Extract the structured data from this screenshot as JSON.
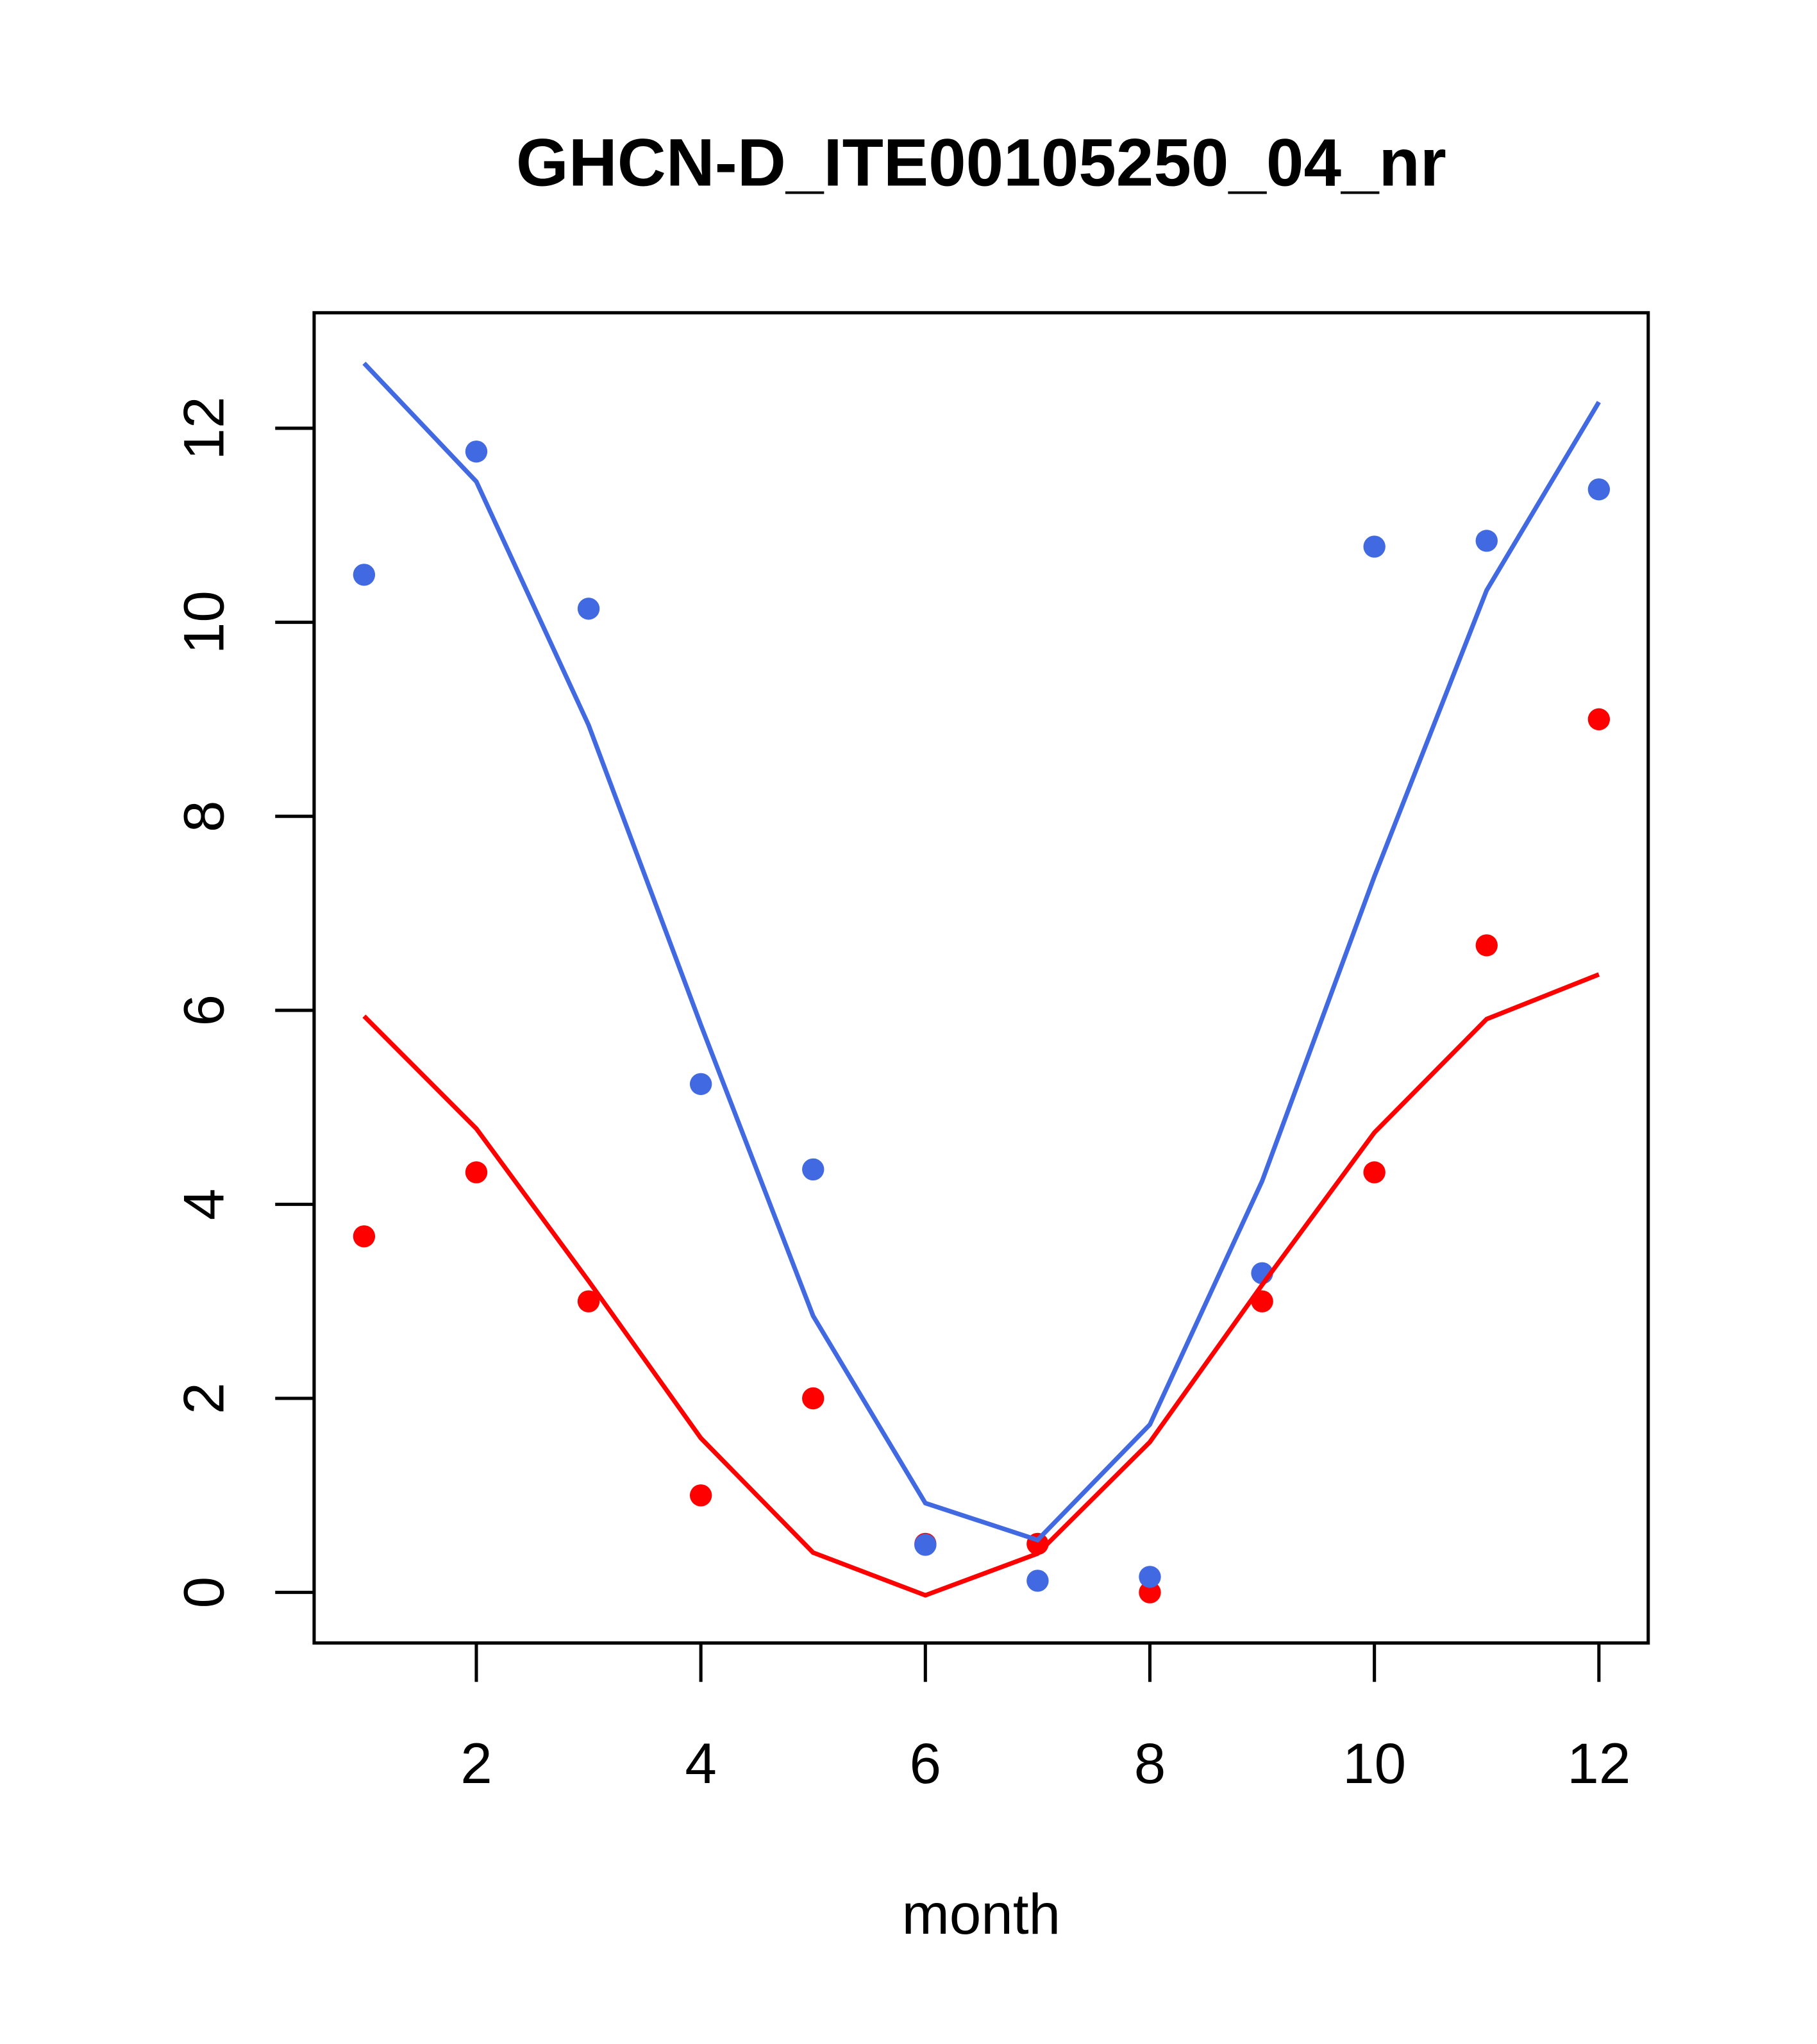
{
  "chart_data": {
    "type": "line",
    "title": "GHCN-D_ITE00105250_04_nr",
    "xlabel": "month",
    "ylabel": "",
    "xlim": [
      0.78,
      12.44
    ],
    "ylim": [
      -0.5,
      13.2
    ],
    "x_ticks": [
      2,
      4,
      6,
      8,
      10,
      12
    ],
    "y_ticks": [
      0,
      2,
      4,
      6,
      8,
      10,
      12
    ],
    "x_tick_labels": [
      "2",
      "4",
      "6",
      "8",
      "10",
      "12"
    ],
    "y_tick_labels": [
      "0",
      "2",
      "4",
      "6",
      "8",
      "10",
      "12"
    ],
    "grid": false,
    "x": [
      1,
      2,
      3,
      4,
      5,
      6,
      7,
      8,
      9,
      10,
      11,
      12
    ],
    "series": [
      {
        "name": "red points",
        "kind": "points",
        "color": "#ff0000",
        "values": [
          3.67,
          4.33,
          3.0,
          1.0,
          2.0,
          0.5,
          0.5,
          0.0,
          3.0,
          4.33,
          6.67,
          9.0
        ]
      },
      {
        "name": "blue points",
        "kind": "points",
        "color": "#4169e1",
        "values": [
          10.49,
          11.76,
          10.14,
          5.24,
          4.36,
          0.49,
          0.12,
          0.16,
          3.29,
          10.78,
          10.84,
          11.37
        ]
      },
      {
        "name": "red line",
        "kind": "line",
        "color": "#ff0000",
        "values": [
          5.94,
          4.78,
          3.21,
          1.59,
          0.41,
          -0.03,
          0.4,
          1.55,
          3.17,
          4.74,
          5.91,
          6.37
        ]
      },
      {
        "name": "blue line",
        "kind": "line",
        "color": "#4169e1",
        "values": [
          12.67,
          11.45,
          8.94,
          5.85,
          2.85,
          0.92,
          0.54,
          1.73,
          4.24,
          7.38,
          10.33,
          12.27
        ]
      }
    ]
  }
}
